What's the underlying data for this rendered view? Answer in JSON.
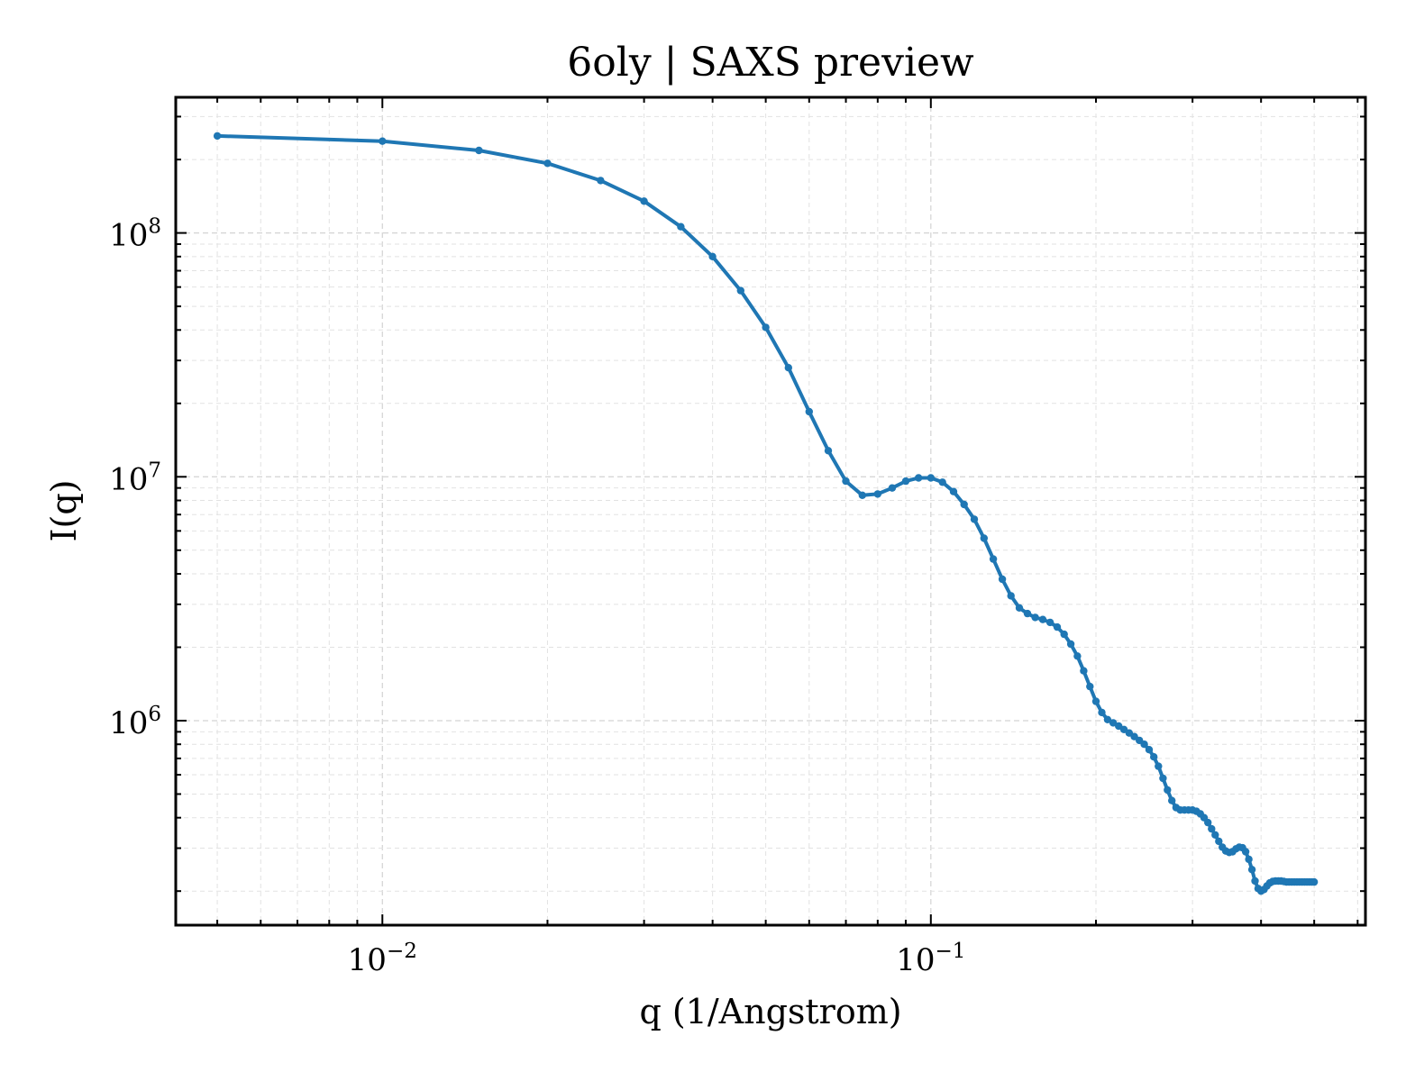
{
  "chart_data": {
    "type": "line",
    "title": "6oly | SAXS preview",
    "xlabel": "q (1/Angstrom)",
    "ylabel": "I(q)",
    "xscale": "log",
    "yscale": "log",
    "xlim": [
      0.0042,
      0.62
    ],
    "ylim": [
      145000,
      360000000
    ],
    "grid": true,
    "legend": "none",
    "x_ticks": [
      {
        "value": 0.01,
        "base": "10",
        "exp": "−2"
      },
      {
        "value": 0.1,
        "base": "10",
        "exp": "−1"
      }
    ],
    "y_ticks": [
      {
        "value": 1000000,
        "base": "10",
        "exp": "6"
      },
      {
        "value": 10000000,
        "base": "10",
        "exp": "7"
      },
      {
        "value": 100000000,
        "base": "10",
        "exp": "8"
      }
    ],
    "series": [
      {
        "color": "#1f77b4",
        "marker": "circle",
        "x": [
          0.005,
          0.01,
          0.015,
          0.02,
          0.025,
          0.03,
          0.035,
          0.04,
          0.045,
          0.05,
          0.055,
          0.06,
          0.065,
          0.07,
          0.075,
          0.08,
          0.085,
          0.09,
          0.095,
          0.1,
          0.105,
          0.11,
          0.115,
          0.12,
          0.125,
          0.13,
          0.135,
          0.14,
          0.145,
          0.15,
          0.155,
          0.16,
          0.165,
          0.17,
          0.175,
          0.18,
          0.185,
          0.19,
          0.195,
          0.2,
          0.205,
          0.21,
          0.215,
          0.22,
          0.225,
          0.23,
          0.235,
          0.24,
          0.245,
          0.25,
          0.255,
          0.26,
          0.265,
          0.27,
          0.275,
          0.28,
          0.285,
          0.29,
          0.295,
          0.3,
          0.305,
          0.31,
          0.315,
          0.32,
          0.325,
          0.33,
          0.335,
          0.34,
          0.345,
          0.35,
          0.355,
          0.36,
          0.365,
          0.37,
          0.375,
          0.38,
          0.385,
          0.39,
          0.395,
          0.4,
          0.405,
          0.41,
          0.415,
          0.42,
          0.425,
          0.43,
          0.435,
          0.44,
          0.445,
          0.45,
          0.455,
          0.46,
          0.465,
          0.47,
          0.475,
          0.48,
          0.485,
          0.49,
          0.495,
          0.5
        ],
        "y": [
          250000000,
          238000000,
          218000000,
          193000000,
          164000000,
          135000000,
          106000000,
          80000000,
          58000000,
          41000000,
          28000000,
          18500000,
          12800000,
          9600000,
          8400000,
          8500000,
          9000000,
          9600000,
          9900000,
          9900000,
          9500000,
          8700000,
          7700000,
          6700000,
          5600000,
          4600000,
          3800000,
          3250000,
          2900000,
          2750000,
          2650000,
          2600000,
          2530000,
          2420000,
          2260000,
          2060000,
          1840000,
          1600000,
          1380000,
          1200000,
          1080000,
          1010000,
          980000,
          950000,
          920000,
          890000,
          860000,
          830000,
          800000,
          760000,
          710000,
          650000,
          580000,
          520000,
          470000,
          440000,
          430000,
          430000,
          430000,
          430000,
          425000,
          415000,
          400000,
          382000,
          360000,
          340000,
          320000,
          303000,
          292000,
          288000,
          290000,
          298000,
          303000,
          301000,
          290000,
          270000,
          245000,
          220000,
          205000,
          200000,
          203000,
          210000,
          216000,
          219000,
          220000,
          220000,
          220000,
          219000,
          218000,
          218000,
          218000,
          218000,
          218000,
          218000,
          218000,
          218000,
          218000,
          218000,
          218000,
          218000
        ]
      }
    ]
  }
}
